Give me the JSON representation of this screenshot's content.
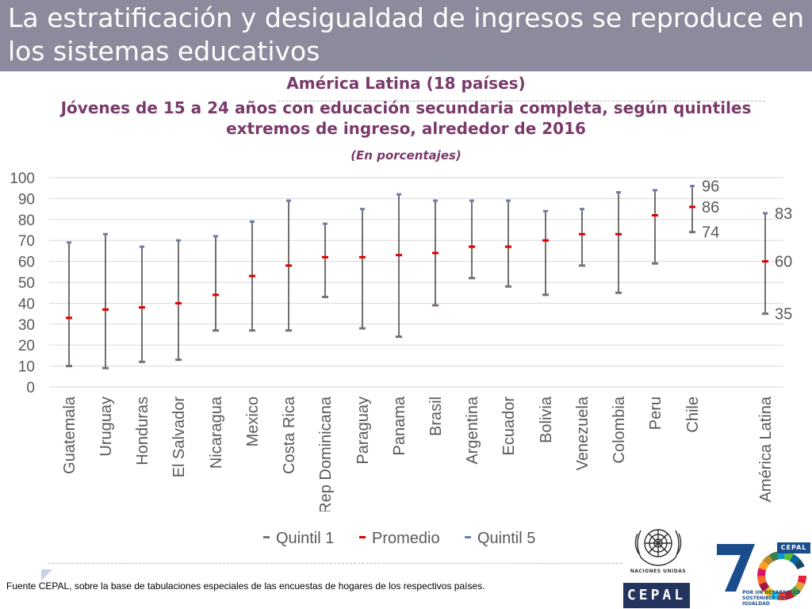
{
  "slide": {
    "title": "La estratificación y desigualdad de ingresos se reproduce en los sistemas educativos",
    "subtitle_region": "América Latina (18 países)",
    "subtitle_line1": "Jóvenes de 15 a 24 años con educación secundaria completa, según quintiles",
    "subtitle_line2": "extremos de ingreso, alrededor de 2016",
    "subtitle_units": "(En porcentajes)",
    "source": "Fuente CEPAL, sobre la base de tabulaciones especiales de las encuestas de hogares de los respectivos países.",
    "un_label": "NACIONES UNIDAS",
    "cepal_label": "CEPAL",
    "cepal_mini_label": "CEPAL",
    "sdg_tagline": "POR UN DESARROLLO SOSTENIBLE CON IGUALDAD"
  },
  "legend": [
    {
      "label": "Quintil 1",
      "color": "#7f6f6f"
    },
    {
      "label": "Promedio",
      "color": "#e00000"
    },
    {
      "label": "Quintil 5",
      "color": "#6f7fa8"
    }
  ],
  "colors": {
    "title_bar": "#8c8b9d",
    "subtitle_text": "#7a3a6a",
    "whisker": "#404040",
    "quintil1": "#7f6f6f",
    "promedio": "#e00000",
    "quintil5": "#6f7fa8",
    "grid": "#d9d9d9",
    "axis_text": "#595959"
  },
  "icons": {
    "un_logo": "un-emblem-icon",
    "anniversary_logo": "cepal-70-sdg-wheel-icon"
  },
  "chart_data": {
    "type": "error-bar",
    "title": "",
    "xlabel": "",
    "ylabel": "",
    "ylim": [
      0,
      100
    ],
    "yticks": [
      0,
      10,
      20,
      30,
      40,
      50,
      60,
      70,
      80,
      90,
      100
    ],
    "grid": true,
    "legend_position": "bottom",
    "categories": [
      "Guatemala",
      "Uruguay",
      "Honduras",
      "El Salvador",
      "Nicaragua",
      "Mexico",
      "Costa Rica",
      "Rep Dominicana",
      "Paraguay",
      "Panama",
      "Brasil",
      "Argentina",
      "Ecuador",
      "Bolivia",
      "Venezuela",
      "Colombia",
      "Peru",
      "Chile",
      "América Latina"
    ],
    "series": [
      {
        "name": "Quintil 1",
        "values": [
          10,
          9,
          12,
          13,
          27,
          27,
          27,
          43,
          28,
          24,
          39,
          52,
          48,
          44,
          58,
          45,
          59,
          74,
          35
        ]
      },
      {
        "name": "Promedio",
        "values": [
          33,
          37,
          38,
          40,
          44,
          53,
          58,
          62,
          62,
          63,
          64,
          67,
          67,
          70,
          73,
          73,
          82,
          86,
          60
        ]
      },
      {
        "name": "Quintil 5",
        "values": [
          69,
          73,
          67,
          70,
          72,
          79,
          89,
          78,
          85,
          92,
          89,
          89,
          89,
          84,
          85,
          93,
          94,
          96,
          83
        ]
      }
    ],
    "annotations": [
      {
        "category": "Chile",
        "text": "96"
      },
      {
        "category": "Chile",
        "text": "86"
      },
      {
        "category": "Chile",
        "text": "74"
      },
      {
        "category": "América Latina",
        "text": "83"
      },
      {
        "category": "América Latina",
        "text": "60"
      },
      {
        "category": "América Latina",
        "text": "35"
      }
    ]
  }
}
